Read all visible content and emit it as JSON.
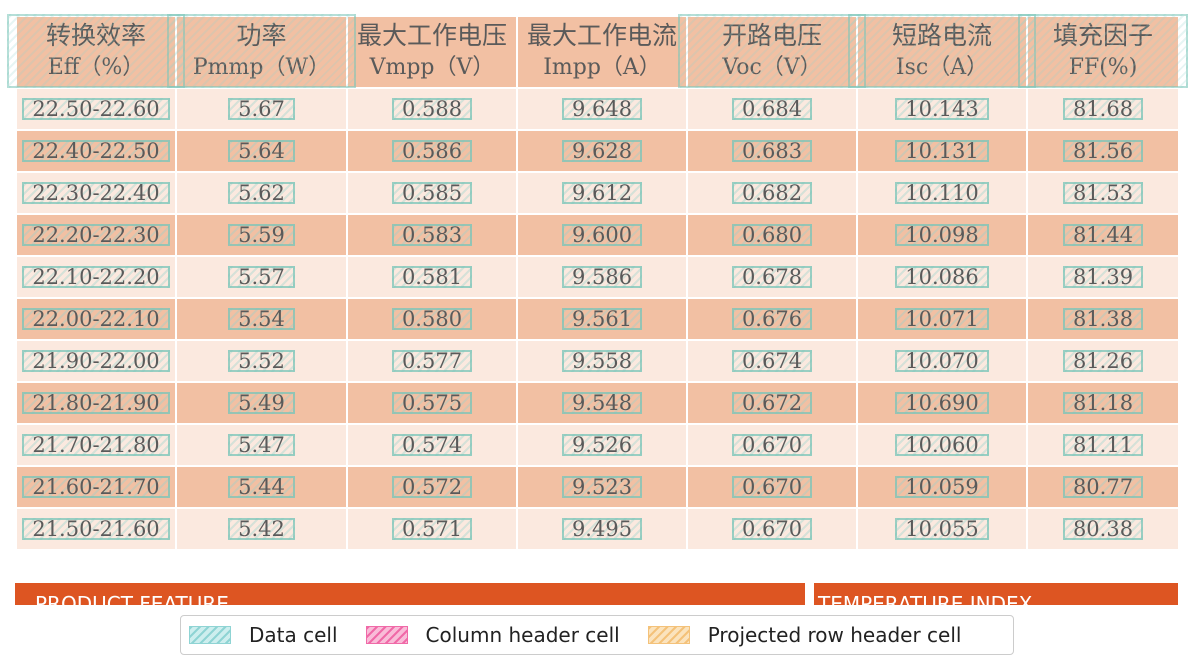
{
  "table": {
    "headers": [
      {
        "line1": "转换效率",
        "line2": "Eff（%）"
      },
      {
        "line1": "功率",
        "line2": "Pmmp（W）"
      },
      {
        "line1": "最大工作电压",
        "line2": "Vmpp（V）"
      },
      {
        "line1": "最大工作电流",
        "line2": "Impp（A）"
      },
      {
        "line1": "开路电压",
        "line2": "Voc（V）"
      },
      {
        "line1": "短路电流",
        "line2": "Isc（A）"
      },
      {
        "line1": "填充因子",
        "line2": "FF(%)"
      }
    ],
    "rows": [
      [
        "22.50-22.60",
        "5.67",
        "0.588",
        "9.648",
        "0.684",
        "10.143",
        "81.68"
      ],
      [
        "22.40-22.50",
        "5.64",
        "0.586",
        "9.628",
        "0.683",
        "10.131",
        "81.56"
      ],
      [
        "22.30-22.40",
        "5.62",
        "0.585",
        "9.612",
        "0.682",
        "10.110",
        "81.53"
      ],
      [
        "22.20-22.30",
        "5.59",
        "0.583",
        "9.600",
        "0.680",
        "10.098",
        "81.44"
      ],
      [
        "22.10-22.20",
        "5.57",
        "0.581",
        "9.586",
        "0.678",
        "10.086",
        "81.39"
      ],
      [
        "22.00-22.10",
        "5.54",
        "0.580",
        "9.561",
        "0.676",
        "10.071",
        "81.38"
      ],
      [
        "21.90-22.00",
        "5.52",
        "0.577",
        "9.558",
        "0.674",
        "10.070",
        "81.26"
      ],
      [
        "21.80-21.90",
        "5.49",
        "0.575",
        "9.548",
        "0.672",
        "10.690",
        "81.18"
      ],
      [
        "21.70-21.80",
        "5.47",
        "0.574",
        "9.526",
        "0.670",
        "10.060",
        "81.11"
      ],
      [
        "21.60-21.70",
        "5.44",
        "0.572",
        "9.523",
        "0.670",
        "10.059",
        "80.77"
      ],
      [
        "21.50-21.60",
        "5.42",
        "0.571",
        "9.495",
        "0.670",
        "10.055",
        "80.38"
      ]
    ]
  },
  "sections": {
    "left_title": "PRODUCT FEATURE",
    "right_title": "TEMPERATURE INDEX"
  },
  "legend": {
    "data_cell": "Data cell",
    "column_header_cell": "Column header cell",
    "projected_row_header_cell": "Projected row header cell"
  },
  "colors": {
    "header_bg": "#f2c0a3",
    "row_dark": "#f2c0a3",
    "row_light": "#fbe9df",
    "section_bar": "#dd5522",
    "data_box": "#7ac4b8"
  }
}
